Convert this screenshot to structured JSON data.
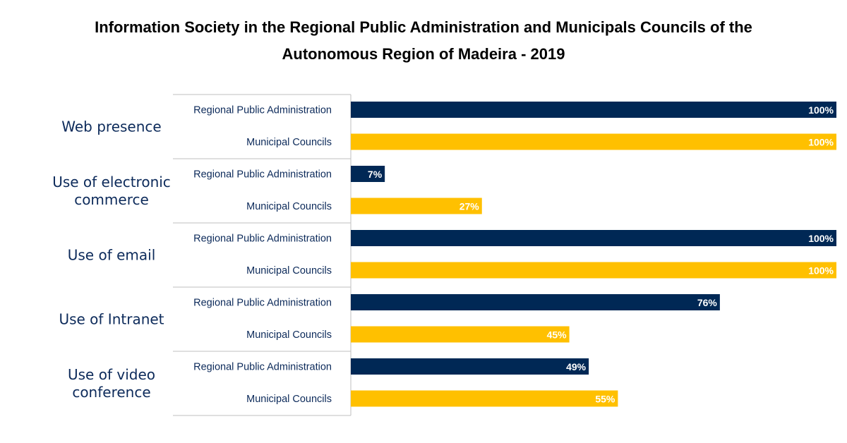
{
  "chart_data": {
    "type": "bar",
    "orientation": "horizontal",
    "title_line1": "Information Society in the Regional Public Administration and Municipals Councils of the",
    "title_line2": "Autonomous Region of Madeira - 2019",
    "xlim": [
      0,
      100
    ],
    "value_suffix": "%",
    "groups": [
      {
        "label_lines": [
          "Web presence"
        ],
        "bars": [
          {
            "name": "Regional Public Administration",
            "value": 100,
            "label": "100%",
            "color": "#002855"
          },
          {
            "name": "Municipal Councils",
            "value": 100,
            "label": "100%",
            "color": "#FFC000"
          }
        ]
      },
      {
        "label_lines": [
          "Use of electronic",
          "commerce"
        ],
        "bars": [
          {
            "name": "Regional Public Administration",
            "value": 7,
            "label": "7%",
            "color": "#002855"
          },
          {
            "name": "Municipal Councils",
            "value": 27,
            "label": "27%",
            "color": "#FFC000"
          }
        ]
      },
      {
        "label_lines": [
          "Use of email"
        ],
        "bars": [
          {
            "name": "Regional Public Administration",
            "value": 100,
            "label": "100%",
            "color": "#002855"
          },
          {
            "name": "Municipal Councils",
            "value": 100,
            "label": "100%",
            "color": "#FFC000"
          }
        ]
      },
      {
        "label_lines": [
          "Use of Intranet"
        ],
        "bars": [
          {
            "name": "Regional Public Administration",
            "value": 76,
            "label": "76%",
            "color": "#002855"
          },
          {
            "name": "Municipal Councils",
            "value": 45,
            "label": "45%",
            "color": "#FFC000"
          }
        ]
      },
      {
        "label_lines": [
          "Use of video",
          "conference"
        ],
        "bars": [
          {
            "name": "Regional Public Administration",
            "value": 49,
            "label": "49%",
            "color": "#002855"
          },
          {
            "name": "Municipal Councils",
            "value": 55,
            "label": "55%",
            "color": "#FFC000"
          }
        ]
      }
    ]
  }
}
